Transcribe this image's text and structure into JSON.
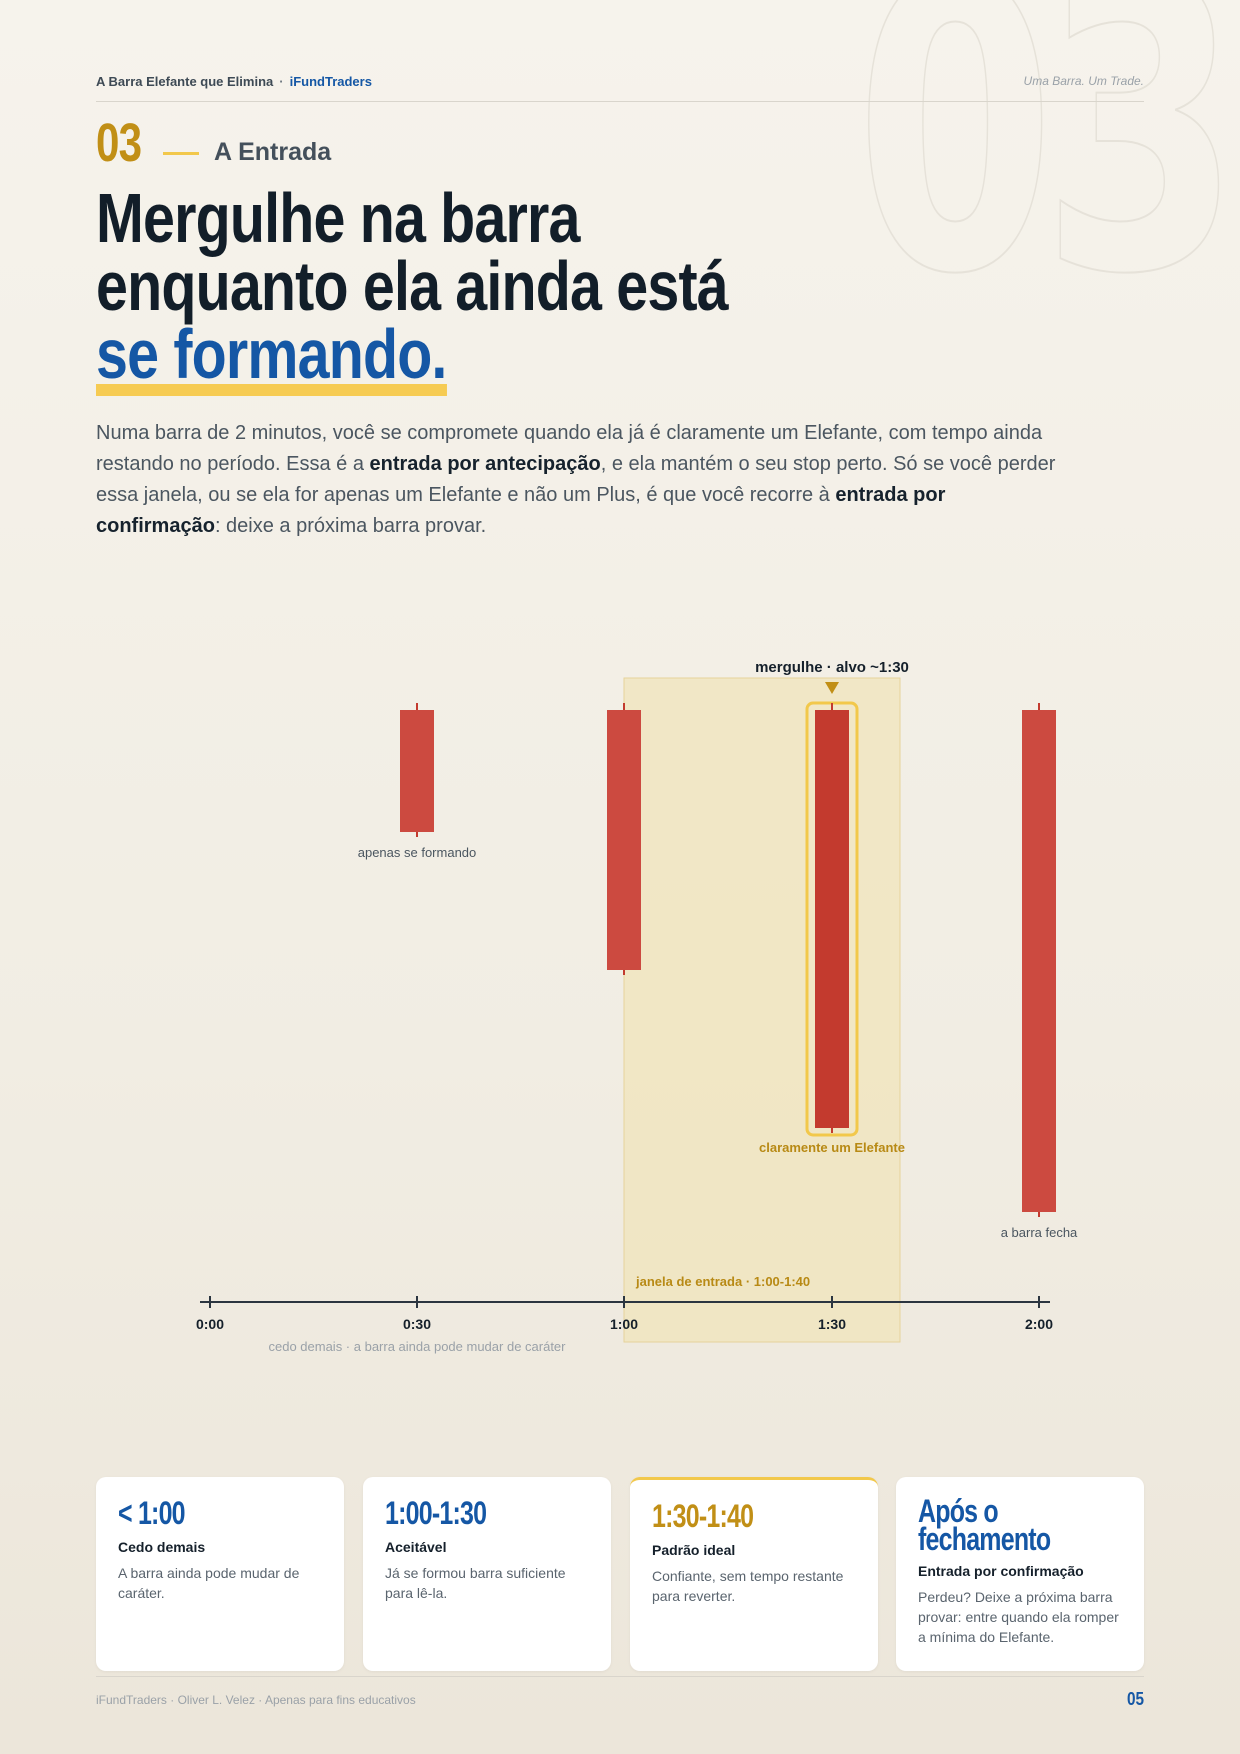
{
  "watermark": "03",
  "header": {
    "doc_title": "A Barra Elefante que Elimina",
    "separator": "·",
    "brand": "iFundTraders",
    "tagline": "Uma Barra. Um Trade."
  },
  "section": {
    "number": "03",
    "label": "A Entrada"
  },
  "headline": {
    "line1": "Mergulhe na barra",
    "line2": "enquanto ela ainda está",
    "line3": "se formando."
  },
  "body": {
    "p1": "Numa barra de 2 minutos, você se compromete quando ela já é claramente um Elefante, com tempo ainda restando no período. Essa é a ",
    "b1": "entrada por antecipação",
    "p2": ", e ela mantém o seu stop perto. Só se você perder essa janela, ou se ela for apenas um Elefante e não um Plus, é que você recorre à ",
    "b2": "entrada por confirmação",
    "p3": ": deixe a próxima barra provar."
  },
  "timeline": {
    "ticks": [
      "0:00",
      "0:30",
      "1:00",
      "1:30",
      "2:00"
    ],
    "axis_note": "cedo demais · a barra ainda pode mudar de caráter",
    "window_label": "janela de entrada · 1:00-1:40",
    "target_label": "mergulhe · alvo ~1:30",
    "bar_labels": {
      "forming": "apenas se formando",
      "elephant": "claramente um Elefante",
      "closes": "a barra fecha"
    },
    "colors": {
      "bar": "#cc4a40",
      "highlight": "#f2c84b",
      "window": "#f2e4b8"
    }
  },
  "cards": [
    {
      "time": "< 1:00",
      "title": "Cedo demais",
      "desc": "A barra ainda pode mudar de caráter."
    },
    {
      "time": "1:00-1:30",
      "title": "Aceitável",
      "desc": "Já se formou barra suficiente para lê-la."
    },
    {
      "time": "1:30-1:40",
      "title": "Padrão ideal",
      "desc": "Confiante, sem tempo restante para reverter."
    },
    {
      "time": "Após o fechamento",
      "title": "Entrada por confirmação",
      "desc": "Perdeu? Deixe a próxima barra provar: entre quando ela romper a mínima do Elefante."
    }
  ],
  "footer": {
    "credit": "iFundTraders · Oliver L. Velez · Apenas para fins educativos",
    "page": "05"
  }
}
